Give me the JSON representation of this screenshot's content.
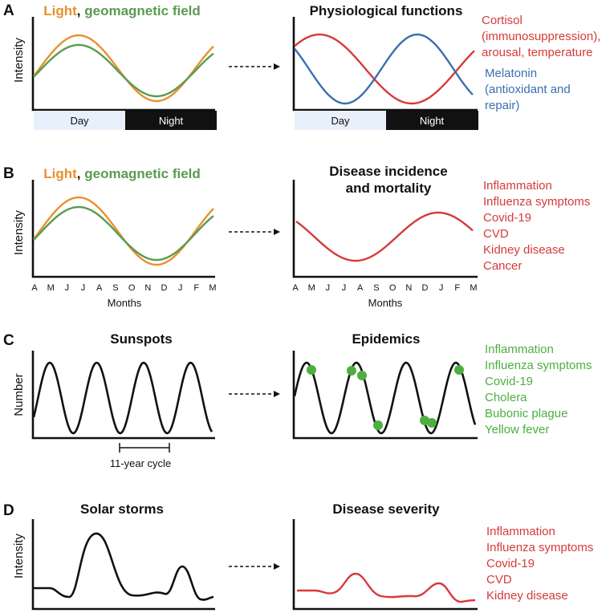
{
  "colors": {
    "light": "#e8912d",
    "geomagnetic": "#5b9a52",
    "red": "#d63a3a",
    "blue": "#3a6fb0",
    "green": "#4caf3f",
    "black": "#111111",
    "day_band": "#e8f0fb",
    "night_band": "#111111"
  },
  "panelA": {
    "letter": "A",
    "left_title": {
      "light": "Light",
      "comma": ", ",
      "geo": "geomagnetic field"
    },
    "ylabel": "Intensity",
    "day": "Day",
    "night": "Night",
    "right_title": "Physiological functions",
    "cortisol_lines": [
      "Cortisol",
      "(immunosuppression),",
      "arousal, temperature"
    ],
    "melatonin_lines": [
      "Melatonin",
      "(antioxidant and",
      "repair)"
    ]
  },
  "panelB": {
    "letter": "B",
    "left_title": {
      "light": "Light",
      "comma": ", ",
      "geo": "geomagnetic field"
    },
    "ylabel": "Intensity",
    "right_title_lines": [
      "Disease incidence",
      "and mortality"
    ],
    "months": [
      "A",
      "M",
      "J",
      "J",
      "A",
      "S",
      "O",
      "N",
      "D",
      "J",
      "F",
      "M"
    ],
    "xlabel": "Months",
    "list": [
      "Inflammation",
      "Influenza symptoms",
      "Covid-19",
      "CVD",
      "Kidney disease",
      "Cancer"
    ]
  },
  "panelC": {
    "letter": "C",
    "left_title": "Sunspots",
    "ylabel": "Number",
    "cycle_label": "11-year cycle",
    "right_title": "Epidemics",
    "list": [
      "Inflammation",
      "Influenza symptoms",
      "Covid-19",
      "Cholera",
      "Bubonic plague",
      "Yellow fever"
    ]
  },
  "panelD": {
    "letter": "D",
    "left_title": "Solar storms",
    "ylabel": "Intensity",
    "right_title": "Disease severity",
    "list": [
      "Inflammation",
      "Influenza symptoms",
      "Covid-19",
      "CVD",
      "Kidney disease"
    ]
  }
}
